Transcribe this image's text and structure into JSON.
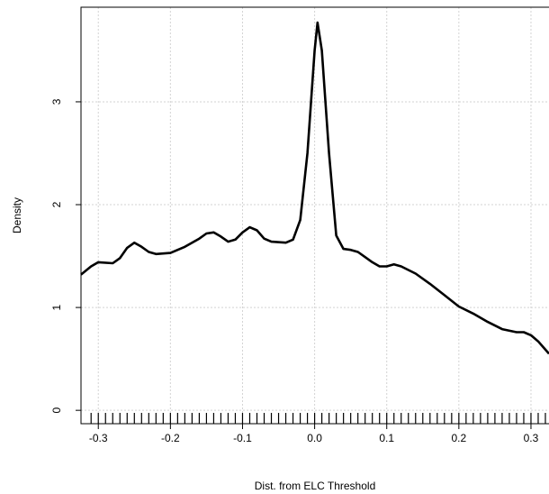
{
  "chart_data": {
    "type": "line",
    "xlabel": "Dist. from ELC Threshold",
    "ylabel": "Density",
    "x": [
      -0.324,
      -0.31,
      -0.3,
      -0.28,
      -0.27,
      -0.26,
      -0.25,
      -0.24,
      -0.23,
      -0.22,
      -0.2,
      -0.18,
      -0.16,
      -0.15,
      -0.14,
      -0.13,
      -0.12,
      -0.11,
      -0.1,
      -0.09,
      -0.08,
      -0.07,
      -0.06,
      -0.04,
      -0.03,
      -0.02,
      -0.01,
      0.0,
      0.004,
      0.01,
      0.02,
      0.03,
      0.04,
      0.05,
      0.06,
      0.07,
      0.08,
      0.09,
      0.1,
      0.11,
      0.12,
      0.14,
      0.16,
      0.18,
      0.2,
      0.22,
      0.24,
      0.26,
      0.28,
      0.29,
      0.3,
      0.31,
      0.325
    ],
    "values": [
      1.32,
      1.4,
      1.44,
      1.43,
      1.48,
      1.58,
      1.63,
      1.59,
      1.54,
      1.52,
      1.53,
      1.59,
      1.67,
      1.72,
      1.73,
      1.69,
      1.64,
      1.66,
      1.73,
      1.78,
      1.75,
      1.67,
      1.64,
      1.63,
      1.66,
      1.85,
      2.5,
      3.5,
      3.77,
      3.5,
      2.5,
      1.7,
      1.57,
      1.56,
      1.54,
      1.49,
      1.44,
      1.4,
      1.4,
      1.42,
      1.4,
      1.33,
      1.23,
      1.12,
      1.01,
      0.94,
      0.86,
      0.79,
      0.76,
      0.76,
      0.73,
      0.67,
      0.55
    ],
    "color": "#000000",
    "rug": [
      -0.31,
      -0.3,
      -0.29,
      -0.28,
      -0.27,
      -0.26,
      -0.25,
      -0.24,
      -0.23,
      -0.22,
      -0.21,
      -0.2,
      -0.19,
      -0.18,
      -0.17,
      -0.16,
      -0.15,
      -0.14,
      -0.13,
      -0.12,
      -0.11,
      -0.1,
      -0.09,
      -0.08,
      -0.07,
      -0.06,
      -0.05,
      -0.04,
      -0.03,
      -0.02,
      -0.01,
      0.0,
      0.01,
      0.02,
      0.03,
      0.04,
      0.05,
      0.06,
      0.07,
      0.08,
      0.09,
      0.1,
      0.11,
      0.12,
      0.13,
      0.14,
      0.15,
      0.16,
      0.17,
      0.18,
      0.19,
      0.2,
      0.21,
      0.22,
      0.23,
      0.24,
      0.25,
      0.26,
      0.27,
      0.28,
      0.29,
      0.3,
      0.31,
      0.32
    ],
    "xlim": [
      -0.324,
      0.325
    ],
    "ylim": [
      -0.13,
      3.92
    ],
    "xticks": [
      -0.3,
      -0.2,
      -0.1,
      {
        "value": 0,
        "label": "0.0"
      },
      0.1,
      0.2,
      0.3
    ],
    "yticks": [
      0,
      1,
      2,
      3
    ],
    "grid": true
  }
}
